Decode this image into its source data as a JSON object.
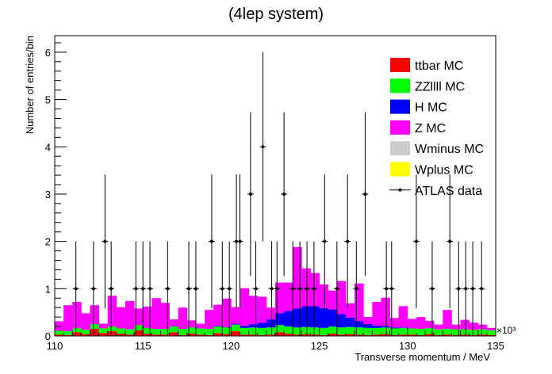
{
  "chart_data": {
    "type": "bar",
    "title": "(4lep system)",
    "xlabel": "Transverse momentum / MeV",
    "ylabel": "Number of entries/bin",
    "x_scale_label": "×10³",
    "xlim": [
      110,
      135
    ],
    "ylim": [
      0,
      6.35
    ],
    "x_ticks": [
      110,
      115,
      120,
      125,
      130,
      135
    ],
    "x_tick_labels": [
      "110",
      "115",
      "120",
      "125",
      "130",
      "135"
    ],
    "y_ticks": [
      0,
      1,
      2,
      3,
      4,
      5,
      6
    ],
    "y_tick_labels": [
      "0",
      "1",
      "2",
      "3",
      "4",
      "5",
      "6"
    ],
    "grid": false,
    "stacked": true,
    "legend_position": "top-right",
    "bin_edges_start": 110,
    "bin_width": 0.5,
    "legend": [
      {
        "label": "ttbar MC",
        "kind": "fill",
        "color": "#ff0000"
      },
      {
        "label": "ZZllll MC",
        "kind": "fill",
        "color": "#00ff00"
      },
      {
        "label": "H MC",
        "kind": "fill",
        "color": "#0000ff"
      },
      {
        "label": "Z MC",
        "kind": "fill",
        "color": "#ff00ff"
      },
      {
        "label": "Wminus MC",
        "kind": "fill",
        "color": "#cccccc"
      },
      {
        "label": "Wplus MC",
        "kind": "fill",
        "color": "#ffff00"
      },
      {
        "label": "ATLAS data",
        "kind": "marker",
        "color": "#000000"
      }
    ],
    "series": [
      {
        "name": "ttbar MC",
        "color": "#ff0000",
        "values": [
          0.03,
          0.02,
          0.08,
          0.04,
          0.15,
          0.06,
          0.1,
          0.05,
          0.03,
          0.12,
          0.05,
          0.03,
          0.03,
          0.08,
          0.02,
          0.05,
          0.03,
          0.02,
          0.06,
          0.04,
          0.1,
          0.03,
          0.03,
          0.02,
          0.03,
          0.08,
          0.05,
          0.03,
          0.04,
          0.03,
          0.02,
          0.05,
          0.03,
          0.04,
          0.03,
          0.02,
          0.03,
          0.04,
          0.02,
          0.03,
          0.03,
          0.02,
          0.04,
          0.02,
          0.03,
          0.02,
          0.03,
          0.02,
          0.03,
          0.02
        ]
      },
      {
        "name": "ZZllll MC",
        "color": "#00ff00",
        "values": [
          0.08,
          0.08,
          0.09,
          0.09,
          0.1,
          0.1,
          0.1,
          0.11,
          0.11,
          0.11,
          0.12,
          0.12,
          0.12,
          0.12,
          0.13,
          0.13,
          0.13,
          0.13,
          0.14,
          0.14,
          0.14,
          0.14,
          0.15,
          0.15,
          0.15,
          0.15,
          0.15,
          0.15,
          0.15,
          0.15,
          0.15,
          0.15,
          0.15,
          0.15,
          0.15,
          0.15,
          0.14,
          0.14,
          0.14,
          0.14,
          0.13,
          0.13,
          0.13,
          0.12,
          0.12,
          0.12,
          0.11,
          0.11,
          0.11,
          0.1
        ]
      },
      {
        "name": "H MC",
        "color": "#0000ff",
        "values": [
          0.0,
          0.0,
          0.0,
          0.0,
          0.0,
          0.0,
          0.0,
          0.0,
          0.0,
          0.0,
          0.0,
          0.0,
          0.0,
          0.0,
          0.0,
          0.0,
          0.0,
          0.0,
          0.01,
          0.01,
          0.02,
          0.04,
          0.07,
          0.11,
          0.17,
          0.25,
          0.33,
          0.4,
          0.44,
          0.45,
          0.42,
          0.36,
          0.28,
          0.2,
          0.13,
          0.08,
          0.05,
          0.03,
          0.02,
          0.01,
          0.0,
          0.0,
          0.0,
          0.0,
          0.0,
          0.0,
          0.0,
          0.0,
          0.0,
          0.0
        ]
      },
      {
        "name": "Z MC",
        "color": "#ff00ff",
        "values": [
          0.2,
          0.55,
          0.55,
          0.35,
          0.4,
          0.1,
          0.65,
          0.45,
          0.6,
          0.35,
          0.45,
          0.65,
          0.55,
          0.15,
          0.45,
          0.15,
          0.1,
          0.4,
          0.45,
          0.6,
          0.35,
          0.8,
          0.6,
          0.55,
          0.25,
          0.65,
          0.6,
          1.3,
          0.8,
          0.7,
          0.5,
          0.4,
          0.7,
          0.3,
          0.8,
          0.15,
          0.5,
          0.6,
          0.2,
          0.45,
          0.2,
          0.25,
          0.15,
          0.1,
          0.4,
          0.1,
          0.2,
          0.15,
          0.1,
          0.05
        ]
      },
      {
        "name": "Wminus MC",
        "color": "#cccccc",
        "values": [
          0,
          0,
          0,
          0,
          0,
          0,
          0,
          0,
          0,
          0,
          0,
          0,
          0,
          0,
          0,
          0,
          0,
          0,
          0,
          0,
          0,
          0,
          0,
          0,
          0,
          0,
          0,
          0,
          0,
          0,
          0,
          0,
          0,
          0,
          0,
          0,
          0,
          0,
          0,
          0,
          0,
          0,
          0,
          0,
          0,
          0,
          0,
          0,
          0,
          0
        ]
      },
      {
        "name": "Wplus MC",
        "color": "#ffff00",
        "values": [
          0,
          0,
          0,
          0,
          0,
          0,
          0,
          0,
          0,
          0,
          0,
          0,
          0,
          0,
          0,
          0,
          0,
          0,
          0,
          0,
          0,
          0,
          0,
          0,
          0,
          0,
          0,
          0,
          0,
          0,
          0,
          0,
          0,
          0,
          0,
          0,
          0,
          0,
          0,
          0,
          0,
          0,
          0,
          0,
          0,
          0,
          0,
          0,
          0,
          0
        ]
      }
    ],
    "data_points": {
      "name": "ATLAS data",
      "x": [
        111.2,
        112.2,
        112.85,
        113.2,
        114.6,
        115.0,
        115.4,
        116.4,
        117.6,
        118.0,
        118.9,
        119.5,
        119.9,
        120.3,
        120.5,
        121.1,
        121.4,
        121.8,
        122.3,
        122.6,
        123.0,
        123.5,
        123.9,
        124.3,
        124.7,
        125.3,
        126.0,
        126.6,
        127.1,
        127.6,
        128.8,
        129.1,
        130.5,
        131.4,
        132.4,
        132.9,
        133.3,
        133.7,
        134.2
      ],
      "y": [
        1,
        1,
        2,
        1,
        1,
        1,
        1,
        1,
        1,
        1,
        2,
        1,
        1,
        2,
        2,
        3,
        1,
        4,
        1,
        1,
        3,
        1,
        1,
        1,
        1,
        2,
        1,
        2,
        1,
        3,
        1,
        1,
        2,
        1,
        2,
        1,
        1,
        1,
        1
      ]
    }
  }
}
